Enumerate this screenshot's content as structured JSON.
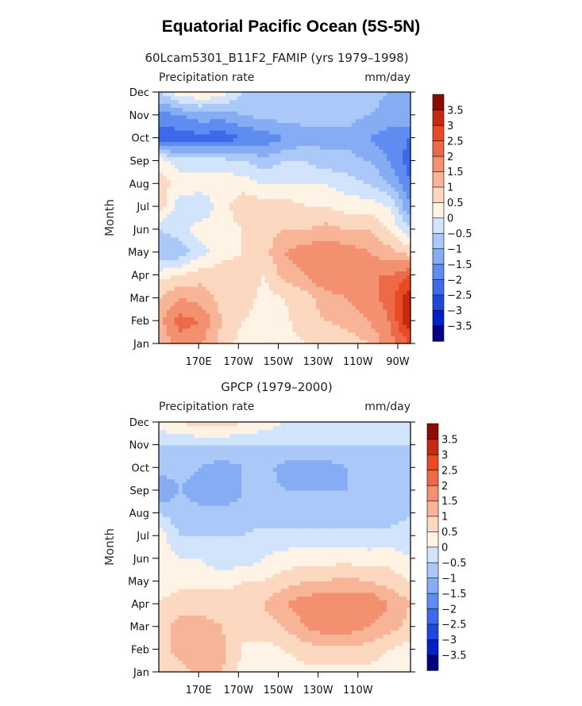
{
  "title": "Equatorial Pacific Ocean (5S-5N)",
  "colors": {
    "levels": [
      "#000080",
      "#0020c8",
      "#1c48dc",
      "#3c6ae8",
      "#5e8cf0",
      "#86acf4",
      "#aac8f8",
      "#d2e4fc",
      "#fff3e6",
      "#fcd8c0",
      "#f8b496",
      "#f29070",
      "#ec6a48",
      "#e84a24",
      "#c42a10",
      "#8c0c04"
    ],
    "frame": "#000000"
  },
  "chart_data": [
    {
      "type": "heatmap",
      "title": "60Lcam5301_B11F2_FAMIP (yrs 1979–1998)",
      "left_label": "Precipitation rate",
      "right_label": "mm/day",
      "xlabel": "",
      "ylabel": "Month",
      "x_ticks": [
        "170E",
        "170W",
        "150W",
        "130W",
        "110W",
        "90W"
      ],
      "y_ticks": [
        "Jan",
        "Feb",
        "Mar",
        "Apr",
        "May",
        "Jun",
        "Jul",
        "Aug",
        "Sep",
        "Oct",
        "Nov",
        "Dec"
      ],
      "x": [
        "150E",
        "160E",
        "170E",
        "180",
        "170W",
        "160W",
        "150W",
        "140W",
        "130W",
        "120W",
        "110W",
        "100W",
        "90W"
      ],
      "y": [
        "Jan",
        "Feb",
        "Mar",
        "Apr",
        "May",
        "Jun",
        "Jul",
        "Aug",
        "Sep",
        "Oct",
        "Nov",
        "Dec"
      ],
      "z": [
        [
          1.0,
          1.8,
          1.5,
          0.8,
          0.3,
          0.2,
          0.3,
          0.5,
          0.5,
          0.7,
          1.0,
          1.8,
          2.5
        ],
        [
          1.3,
          2.2,
          2.0,
          1.0,
          0.5,
          0.3,
          0.4,
          0.8,
          1.0,
          1.2,
          1.5,
          2.0,
          3.5
        ],
        [
          1.0,
          1.5,
          1.3,
          0.8,
          0.8,
          0.3,
          0.5,
          0.8,
          1.3,
          1.5,
          1.8,
          2.2,
          3.5
        ],
        [
          0.3,
          0.5,
          0.8,
          0.8,
          0.8,
          0.5,
          1.2,
          1.5,
          2.0,
          1.8,
          2.0,
          2.0,
          2.5
        ],
        [
          -1.0,
          -0.8,
          -0.2,
          0.3,
          0.5,
          0.8,
          1.5,
          1.8,
          1.8,
          1.8,
          1.5,
          1.2,
          0.8
        ],
        [
          -0.5,
          -0.3,
          0.3,
          0.3,
          0.5,
          0.8,
          1.0,
          1.0,
          1.2,
          1.0,
          1.0,
          0.5,
          -0.5
        ],
        [
          0.8,
          -0.3,
          -0.5,
          0.3,
          0.8,
          0.8,
          0.8,
          0.5,
          0.5,
          0.3,
          0.3,
          0.0,
          -1.5
        ],
        [
          0.8,
          0.3,
          0.3,
          0.3,
          0.3,
          0.0,
          0.0,
          0.0,
          0.0,
          -0.3,
          -0.5,
          -1.0,
          -2.0
        ],
        [
          0.3,
          -0.3,
          -0.3,
          -0.3,
          -0.5,
          -0.8,
          -0.5,
          -0.5,
          -0.8,
          -0.8,
          -1.0,
          -1.5,
          -2.3
        ],
        [
          -2.3,
          -2.3,
          -2.2,
          -2.3,
          -2.0,
          -1.8,
          -1.5,
          -1.2,
          -1.2,
          -1.2,
          -1.5,
          -1.8,
          -2.0
        ],
        [
          -1.8,
          -1.5,
          -1.2,
          -1.3,
          -1.0,
          -0.8,
          -0.8,
          -0.8,
          -0.8,
          -0.8,
          -1.0,
          -1.2,
          -1.0
        ],
        [
          -0.5,
          0.3,
          0.5,
          0.3,
          -0.5,
          -0.8,
          -0.8,
          -0.8,
          -0.8,
          -0.8,
          -0.8,
          -1.0,
          -1.0
        ]
      ],
      "levels": [
        -3.5,
        -3,
        -2.5,
        -2,
        -1.5,
        -1,
        -0.5,
        0,
        0.5,
        1,
        1.5,
        2,
        2.5,
        3,
        3.5
      ],
      "colorbar_labels": [
        "3.5",
        "3",
        "2.5",
        "2",
        "1.5",
        "1",
        "0.5",
        "0",
        "−0.5",
        "−1",
        "−1.5",
        "−2",
        "−2.5",
        "−3",
        "−3.5"
      ]
    },
    {
      "type": "heatmap",
      "title": "GPCP (1979–2000)",
      "left_label": "Precipitation rate",
      "right_label": "mm/day",
      "xlabel": "",
      "ylabel": "Month",
      "x_ticks": [
        "170E",
        "170W",
        "150W",
        "130W",
        "110W"
      ],
      "y_ticks": [
        "Jan",
        "Feb",
        "Mar",
        "Apr",
        "May",
        "Jun",
        "Jul",
        "Aug",
        "Sep",
        "Oct",
        "Nov",
        "Dec"
      ],
      "x": [
        "150E",
        "160E",
        "170E",
        "180",
        "170W",
        "160W",
        "150W",
        "140W",
        "130W",
        "120W",
        "110W",
        "100W",
        "90W"
      ],
      "y": [
        "Jan",
        "Feb",
        "Mar",
        "Apr",
        "May",
        "Jun",
        "Jul",
        "Aug",
        "Sep",
        "Oct",
        "Nov",
        "Dec"
      ],
      "z": [
        [
          0.5,
          0.8,
          1.2,
          1.0,
          0.3,
          0.2,
          0.2,
          0.3,
          0.3,
          0.3,
          0.3,
          0.3,
          0.2
        ],
        [
          0.8,
          1.2,
          1.3,
          1.2,
          0.5,
          0.3,
          0.5,
          0.8,
          0.8,
          0.8,
          0.8,
          0.5,
          0.3
        ],
        [
          0.8,
          1.2,
          1.2,
          1.0,
          0.5,
          0.8,
          1.0,
          1.5,
          1.8,
          1.8,
          1.5,
          1.2,
          0.8
        ],
        [
          0.5,
          0.8,
          0.8,
          0.8,
          0.8,
          1.0,
          1.5,
          1.8,
          2.0,
          1.8,
          2.0,
          1.5,
          1.0
        ],
        [
          0.3,
          0.3,
          0.3,
          0.3,
          0.5,
          0.5,
          0.8,
          1.0,
          1.0,
          1.2,
          1.0,
          0.8,
          0.5
        ],
        [
          0.3,
          0.0,
          0.0,
          -0.3,
          -0.3,
          0.0,
          0.2,
          0.3,
          0.3,
          0.3,
          0.2,
          0.3,
          0.0
        ],
        [
          0.3,
          -0.5,
          -0.5,
          -0.5,
          -0.5,
          -0.3,
          -0.3,
          -0.3,
          -0.3,
          -0.3,
          -0.3,
          -0.3,
          -0.3
        ],
        [
          -0.5,
          -0.8,
          -0.8,
          -0.8,
          -0.8,
          -0.8,
          -0.8,
          -0.8,
          -0.8,
          -0.8,
          -0.8,
          -0.8,
          -0.5
        ],
        [
          -1.5,
          -1.0,
          -1.3,
          -1.5,
          -1.0,
          -0.8,
          -1.0,
          -1.0,
          -1.0,
          -1.0,
          -0.8,
          -0.8,
          -1.0
        ],
        [
          -0.8,
          -0.8,
          -1.0,
          -1.3,
          -1.0,
          -0.8,
          -1.2,
          -1.2,
          -1.2,
          -1.0,
          -0.8,
          -0.8,
          -1.0
        ],
        [
          -0.5,
          -0.5,
          -0.5,
          -0.5,
          -0.5,
          -0.5,
          -0.5,
          -0.5,
          -0.5,
          -0.5,
          -0.5,
          -0.5,
          -0.5
        ],
        [
          0.3,
          0.5,
          0.8,
          0.8,
          0.5,
          0.3,
          0.0,
          -0.3,
          -0.3,
          -0.3,
          -0.3,
          -0.3,
          -0.3
        ]
      ],
      "levels": [
        -3.5,
        -3,
        -2.5,
        -2,
        -1.5,
        -1,
        -0.5,
        0,
        0.5,
        1,
        1.5,
        2,
        2.5,
        3,
        3.5
      ],
      "colorbar_labels": [
        "3.5",
        "3",
        "2.5",
        "2",
        "1.5",
        "1",
        "0.5",
        "0",
        "−0.5",
        "−1",
        "−1.5",
        "−2",
        "−2.5",
        "−3",
        "−3.5"
      ]
    }
  ]
}
